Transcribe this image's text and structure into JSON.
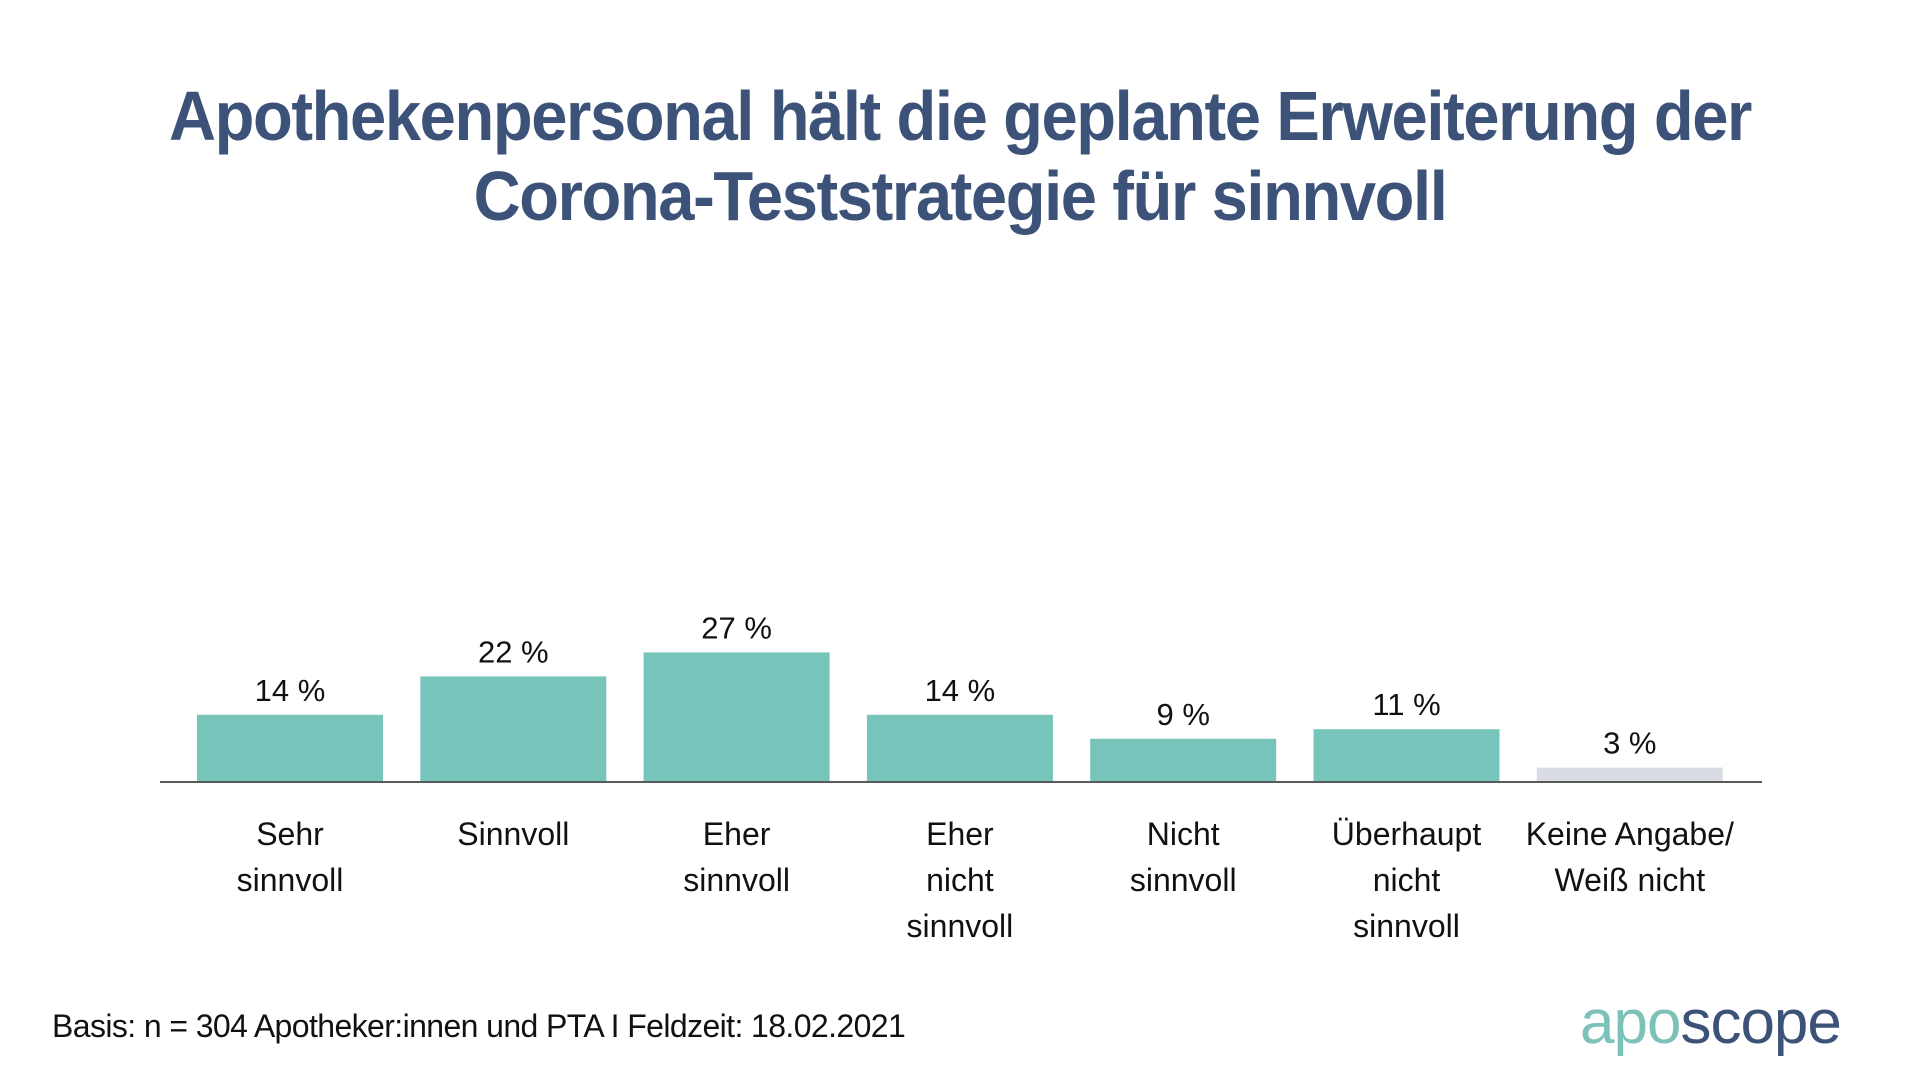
{
  "title": {
    "line1": "Apothekenpersonal hält die geplante Erweiterung der",
    "line2": "Corona-Teststrategie für sinnvoll"
  },
  "chart_data": {
    "type": "bar",
    "title": "Apothekenpersonal hält die geplante Erweiterung der Corona-Teststrategie für sinnvoll",
    "xlabel": "",
    "ylabel": "",
    "unit": "%",
    "ylim": [
      0,
      30
    ],
    "grid": false,
    "legend": "none",
    "categories": [
      [
        "Sehr",
        "sinnvoll"
      ],
      [
        "Sinnvoll"
      ],
      [
        "Eher",
        "sinnvoll"
      ],
      [
        "Eher",
        "nicht",
        "sinnvoll"
      ],
      [
        "Nicht",
        "sinnvoll"
      ],
      [
        "Überhaupt",
        "nicht",
        "sinnvoll"
      ],
      [
        "Keine Angabe/",
        "Weiß nicht"
      ]
    ],
    "values": [
      14,
      22,
      27,
      14,
      9,
      11,
      3
    ],
    "value_labels": [
      "14 %",
      "22 %",
      "27 %",
      "14 %",
      "9 %",
      "11 %",
      "3 %"
    ],
    "colors": [
      "#77c4bb",
      "#77c4bb",
      "#77c4bb",
      "#77c4bb",
      "#77c4bb",
      "#77c4bb",
      "#d9dce3"
    ]
  },
  "footer": {
    "note": "Basis: n = 304 Apotheker:innen und PTA I Feldzeit: 18.02.2021"
  },
  "logo": {
    "part1": "apo",
    "part2": "scope",
    "color1": "#7cc2b9",
    "color2": "#3d5278"
  }
}
